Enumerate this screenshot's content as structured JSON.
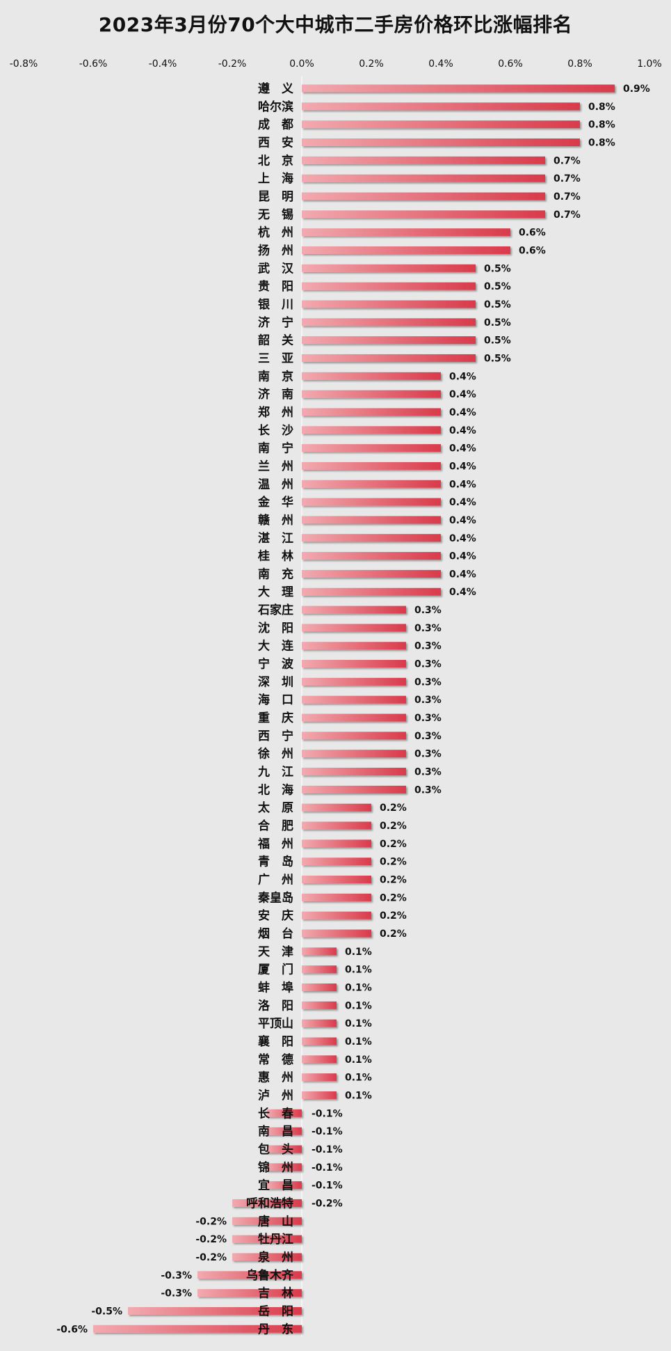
{
  "chart_data": {
    "type": "bar",
    "orientation": "horizontal",
    "title": "2023年3月份70个大中城市二手房价格环比涨幅排名",
    "xlim": [
      -0.8,
      1.0
    ],
    "tick_values": [
      -0.8,
      -0.6,
      -0.4,
      -0.2,
      0.0,
      0.2,
      0.4,
      0.6,
      0.8,
      1.0
    ],
    "tick_labels": [
      "-0.8%",
      "-0.6%",
      "-0.4%",
      "-0.2%",
      "0.0%",
      "0.2%",
      "0.4%",
      "0.6%",
      "0.8%",
      "1.0%"
    ],
    "axis_position": "top",
    "grid": false,
    "legend": "none",
    "bar_color_positive": "#d93a4a",
    "bar_color_light": "#f2aab0",
    "categories": [
      "遵　义",
      "哈尔滨",
      "成　都",
      "西　安",
      "北　京",
      "上　海",
      "昆　明",
      "无　锡",
      "杭　州",
      "扬　州",
      "武　汉",
      "贵　阳",
      "银　川",
      "济　宁",
      "韶　关",
      "三　亚",
      "南　京",
      "济　南",
      "郑　州",
      "长　沙",
      "南　宁",
      "兰　州",
      "温　州",
      "金　华",
      "赣　州",
      "湛　江",
      "桂　林",
      "南　充",
      "大　理",
      "石家庄",
      "沈　阳",
      "大　连",
      "宁　波",
      "深　圳",
      "海　口",
      "重　庆",
      "西　宁",
      "徐　州",
      "九　江",
      "北　海",
      "太　原",
      "合　肥",
      "福　州",
      "青　岛",
      "广　州",
      "秦皇岛",
      "安　庆",
      "烟　台",
      "天　津",
      "厦　门",
      "蚌　埠",
      "洛　阳",
      "平顶山",
      "襄　阳",
      "常　德",
      "惠　州",
      "泸　州",
      "长　春",
      "南　昌",
      "包　头",
      "锦　州",
      "宜　昌",
      "呼和浩特",
      "唐　山",
      "牡丹江",
      "泉　州",
      "乌鲁木齐",
      "吉　林",
      "岳　阳",
      "丹　东"
    ],
    "values": [
      0.9,
      0.8,
      0.8,
      0.8,
      0.7,
      0.7,
      0.7,
      0.7,
      0.6,
      0.6,
      0.5,
      0.5,
      0.5,
      0.5,
      0.5,
      0.5,
      0.4,
      0.4,
      0.4,
      0.4,
      0.4,
      0.4,
      0.4,
      0.4,
      0.4,
      0.4,
      0.4,
      0.4,
      0.4,
      0.3,
      0.3,
      0.3,
      0.3,
      0.3,
      0.3,
      0.3,
      0.3,
      0.3,
      0.3,
      0.3,
      0.2,
      0.2,
      0.2,
      0.2,
      0.2,
      0.2,
      0.2,
      0.2,
      0.1,
      0.1,
      0.1,
      0.1,
      0.1,
      0.1,
      0.1,
      0.1,
      0.1,
      -0.1,
      -0.1,
      -0.1,
      -0.1,
      -0.1,
      -0.2,
      -0.2,
      -0.2,
      -0.2,
      -0.3,
      -0.3,
      -0.5,
      -0.6
    ],
    "value_labels": [
      "0.9%",
      "0.8%",
      "0.8%",
      "0.8%",
      "0.7%",
      "0.7%",
      "0.7%",
      "0.7%",
      "0.6%",
      "0.6%",
      "0.5%",
      "0.5%",
      "0.5%",
      "0.5%",
      "0.5%",
      "0.5%",
      "0.4%",
      "0.4%",
      "0.4%",
      "0.4%",
      "0.4%",
      "0.4%",
      "0.4%",
      "0.4%",
      "0.4%",
      "0.4%",
      "0.4%",
      "0.4%",
      "0.4%",
      "0.3%",
      "0.3%",
      "0.3%",
      "0.3%",
      "0.3%",
      "0.3%",
      "0.3%",
      "0.3%",
      "0.3%",
      "0.3%",
      "0.3%",
      "0.2%",
      "0.2%",
      "0.2%",
      "0.2%",
      "0.2%",
      "0.2%",
      "0.2%",
      "0.2%",
      "0.1%",
      "0.1%",
      "0.1%",
      "0.1%",
      "0.1%",
      "0.1%",
      "0.1%",
      "0.1%",
      "0.1%",
      "-0.1%",
      "-0.1%",
      "-0.1%",
      "-0.1%",
      "-0.1%",
      "-0.2%",
      "-0.2%",
      "-0.2%",
      "-0.2%",
      "-0.3%",
      "-0.3%",
      "-0.5%",
      "-0.6%"
    ]
  }
}
